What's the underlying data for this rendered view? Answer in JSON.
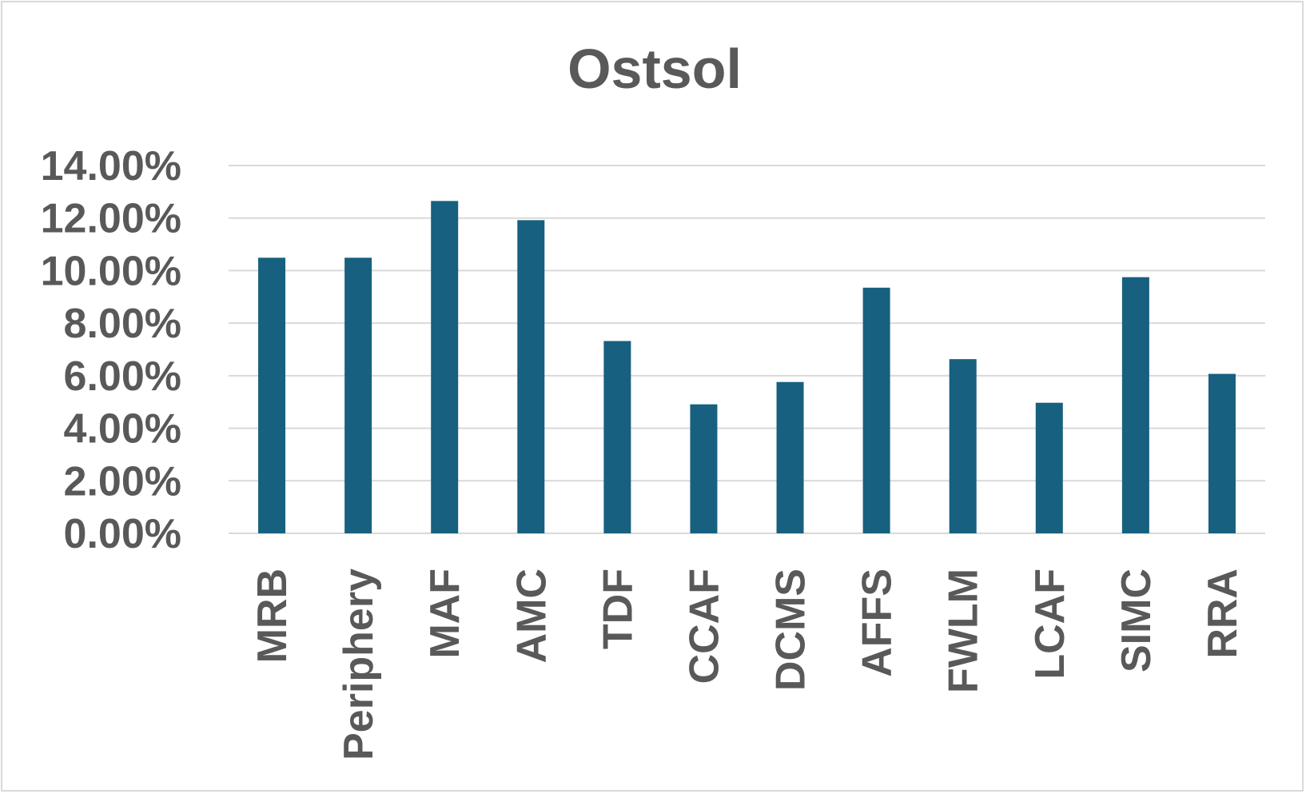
{
  "chart_data": {
    "type": "bar",
    "title": "Ostsol",
    "xlabel": "",
    "ylabel": "",
    "categories": [
      "MRB",
      "Periphery",
      "MAF",
      "AMC",
      "TDF",
      "CCAF",
      "DCMS",
      "AFFS",
      "FWLM",
      "LCAF",
      "SIMC",
      "RRA"
    ],
    "values": [
      0.1049,
      0.1049,
      0.1265,
      0.1192,
      0.0732,
      0.0491,
      0.0576,
      0.0935,
      0.0663,
      0.0497,
      0.0975,
      0.0607
    ],
    "ylim": [
      0,
      0.14
    ],
    "yticks": [
      0,
      0.02,
      0.04,
      0.06,
      0.08,
      0.1,
      0.12,
      0.14
    ],
    "ytick_labels": [
      "0.00%",
      "2.00%",
      "4.00%",
      "6.00%",
      "8.00%",
      "10.00%",
      "12.00%",
      "14.00%"
    ],
    "grid": true,
    "legend": "none",
    "bar_color": "#17607f",
    "grid_color": "#d9d9d9",
    "text_color": "#595959"
  }
}
